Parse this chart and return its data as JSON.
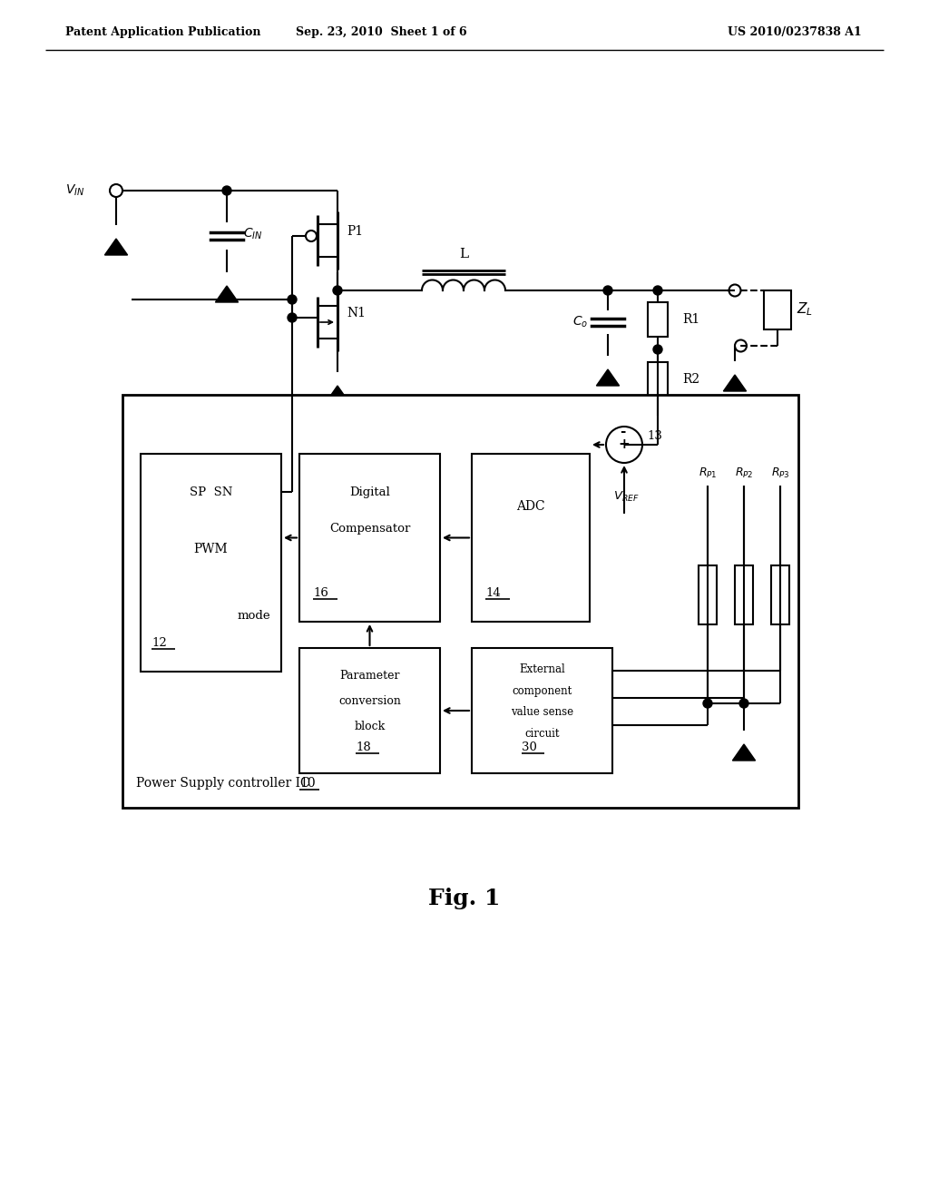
{
  "bg_color": "#ffffff",
  "line_color": "#000000",
  "header_left": "Patent Application Publication",
  "header_center": "Sep. 23, 2010  Sheet 1 of 6",
  "header_right": "US 2010/0237838 A1",
  "fig_caption": "Fig. 1",
  "ic_box_label": "Power Supply controller IC ",
  "ic_box_label_num": "10"
}
